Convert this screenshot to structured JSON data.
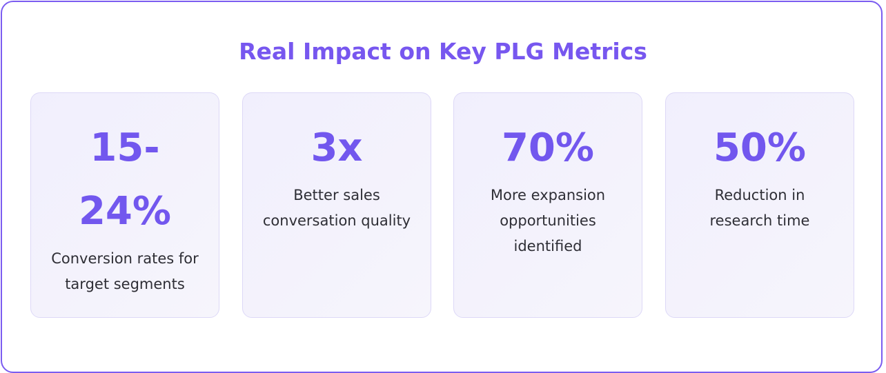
{
  "header": {
    "title": "Real Impact on Key PLG Metrics"
  },
  "cards": [
    {
      "metric": "15-24%",
      "description": "Conversion rates for target segments"
    },
    {
      "metric": "3x",
      "description": "Better sales conversation quality"
    },
    {
      "metric": "70%",
      "description": "More expansion opportunities identified"
    },
    {
      "metric": "50%",
      "description": "Reduction in research time"
    }
  ]
}
